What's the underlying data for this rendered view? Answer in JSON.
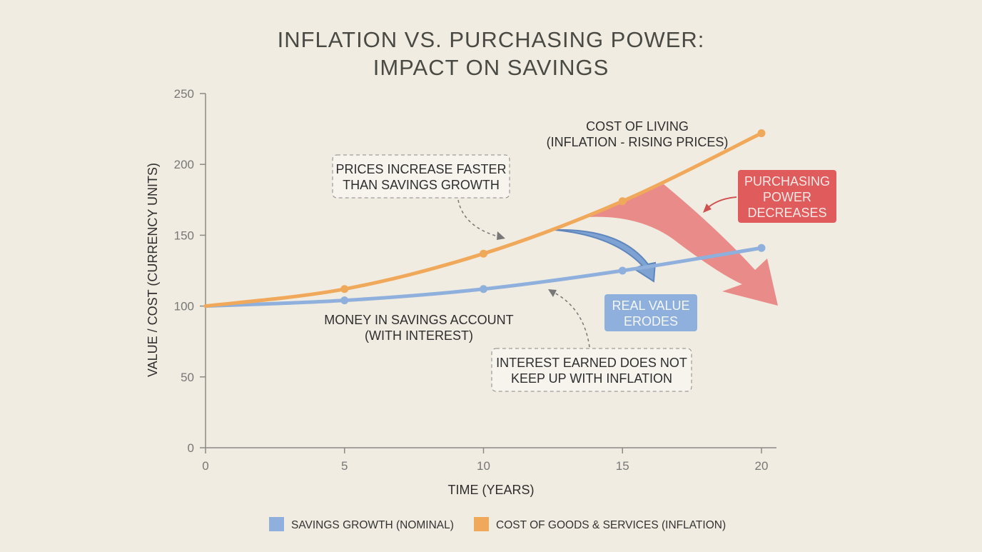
{
  "chart_data": {
    "type": "line",
    "title": [
      "INFLATION VS. PURCHASING POWER:",
      "IMPACT ON SAVINGS"
    ],
    "xlabel": "TIME (YEARS)",
    "ylabel": "VALUE / COST (CURRENCY UNITS)",
    "xlim": [
      0,
      20
    ],
    "ylim": [
      0,
      250
    ],
    "xticks": [
      "0",
      "5",
      "10",
      "15",
      "20"
    ],
    "yticks": [
      "0",
      "50",
      "100",
      "150",
      "200",
      "250"
    ],
    "grid": false,
    "legend_placement": "bottom",
    "x": [
      0,
      5,
      10,
      15,
      20
    ],
    "series": [
      {
        "name": "SAVINGS GROWTH (NOMINAL)",
        "color": "#8fb0dc",
        "values": [
          100,
          104,
          112,
          125,
          141
        ]
      },
      {
        "name": "COST OF GOODS & SERVICES (INFLATION)",
        "color": "#f0a95a",
        "values": [
          100,
          112,
          137,
          174,
          222
        ]
      }
    ],
    "annotations": {
      "cost_of_living": [
        "COST OF LIVING",
        "(INFLATION - RISING PRICES)"
      ],
      "prices_faster": [
        "PRICES INCREASE FASTER",
        "THAN SAVINGS GROWTH"
      ],
      "purchasing_power": [
        "PURCHASING",
        "POWER",
        "DECREASES"
      ],
      "real_value": [
        "REAL VALUE",
        "ERODES"
      ],
      "money_savings": [
        "MONEY IN SAVINGS ACCOUNT",
        "(WITH INTEREST)"
      ],
      "interest_earned": [
        "INTEREST EARNED DOES NOT",
        "KEEP UP WITH INFLATION"
      ]
    },
    "colors": {
      "background": "#f1ece2",
      "red": "#e26060",
      "blue": "#8fb0dc",
      "orange": "#f0a95a"
    }
  }
}
